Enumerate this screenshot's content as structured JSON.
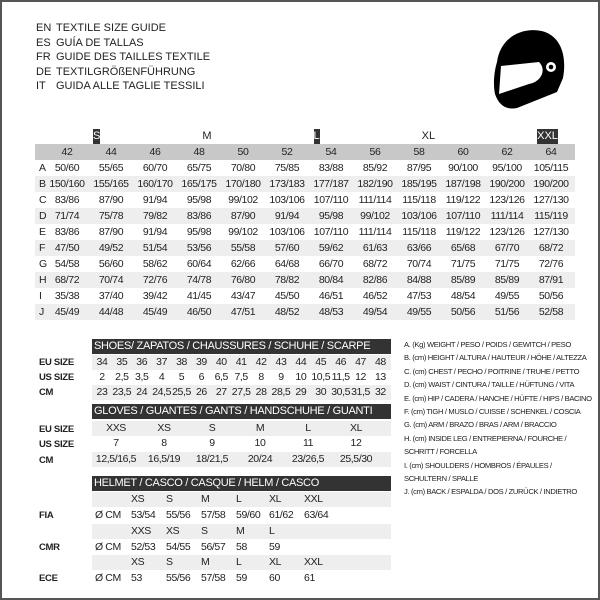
{
  "titles": [
    {
      "lang": "EN",
      "text": "TEXTILE SIZE GUIDE"
    },
    {
      "lang": "ES",
      "text": "GUÍA DE TALLAS"
    },
    {
      "lang": "FR",
      "text": "GUIDE DES TAILLES TEXTILE"
    },
    {
      "lang": "DE",
      "text": "TEXTILGRÖßENFÜHRUNG"
    },
    {
      "lang": "IT",
      "text": "GUIDA ALLE TAGLIE TESSILI"
    }
  ],
  "icon": "helmet-icon",
  "textile": {
    "size_groups": [
      {
        "label": "S",
        "style": "dark"
      },
      {
        "label": "M",
        "style": "light"
      },
      {
        "label": "L",
        "style": "dark"
      },
      {
        "label": "XL",
        "style": "light"
      },
      {
        "label": "XXL",
        "style": "dark"
      }
    ],
    "sizes": [
      "42",
      "44",
      "46",
      "48",
      "50",
      "52",
      "54",
      "56",
      "58",
      "60",
      "62",
      "64"
    ],
    "rows": [
      {
        "letter": "A",
        "values": [
          "50/60",
          "55/65",
          "60/70",
          "65/75",
          "70/80",
          "75/85",
          "83/88",
          "85/92",
          "87/95",
          "90/100",
          "95/100",
          "105/115"
        ]
      },
      {
        "letter": "B",
        "values": [
          "150/160",
          "155/165",
          "160/170",
          "165/175",
          "170/180",
          "173/183",
          "177/187",
          "182/190",
          "185/195",
          "187/198",
          "190/200",
          "190/200"
        ]
      },
      {
        "letter": "C",
        "values": [
          "83/86",
          "87/90",
          "91/94",
          "95/98",
          "99/102",
          "103/106",
          "107/110",
          "111/114",
          "115/118",
          "119/122",
          "123/126",
          "127/130"
        ]
      },
      {
        "letter": "D",
        "values": [
          "71/74",
          "75/78",
          "79/82",
          "83/86",
          "87/90",
          "91/94",
          "95/98",
          "99/102",
          "103/106",
          "107/110",
          "111/114",
          "115/119"
        ]
      },
      {
        "letter": "E",
        "values": [
          "83/86",
          "87/90",
          "91/94",
          "95/98",
          "99/102",
          "103/106",
          "107/110",
          "111/114",
          "115/118",
          "119/122",
          "123/126",
          "127/130"
        ]
      },
      {
        "letter": "F",
        "values": [
          "47/50",
          "49/52",
          "51/54",
          "53/56",
          "55/58",
          "57/60",
          "59/62",
          "61/63",
          "63/66",
          "65/68",
          "67/70",
          "68/72"
        ]
      },
      {
        "letter": "G",
        "values": [
          "54/58",
          "56/60",
          "58/62",
          "60/64",
          "62/66",
          "64/68",
          "66/70",
          "68/72",
          "70/74",
          "71/75",
          "71/75",
          "72/76"
        ]
      },
      {
        "letter": "H",
        "values": [
          "68/72",
          "70/74",
          "72/76",
          "74/78",
          "76/80",
          "78/82",
          "80/84",
          "82/86",
          "84/88",
          "85/89",
          "85/89",
          "87/91"
        ]
      },
      {
        "letter": "I",
        "values": [
          "35/38",
          "37/40",
          "39/42",
          "41/45",
          "43/47",
          "45/50",
          "46/51",
          "46/52",
          "47/53",
          "48/54",
          "49/55",
          "50/56"
        ]
      },
      {
        "letter": "J",
        "values": [
          "45/49",
          "44/48",
          "45/49",
          "46/50",
          "47/51",
          "48/52",
          "48/53",
          "49/54",
          "49/55",
          "50/56",
          "51/56",
          "52/58"
        ]
      }
    ]
  },
  "shoes": {
    "title": "SHOES/ ZAPATOS / CHAUSSURES / SCHUHE / SCARPE",
    "rows": [
      {
        "label": "EU SIZE",
        "values": [
          "34",
          "35",
          "36",
          "37",
          "38",
          "39",
          "40",
          "41",
          "42",
          "43",
          "44",
          "45",
          "46",
          "47",
          "48"
        ]
      },
      {
        "label": "US SIZE",
        "values": [
          "2",
          "2,5",
          "3,5",
          "4",
          "5",
          "6",
          "6,5",
          "7,5",
          "8",
          "9",
          "10",
          "10,5",
          "11,5",
          "12",
          "13"
        ]
      },
      {
        "label": "CM",
        "values": [
          "23",
          "23,5",
          "24",
          "24,5",
          "25,5",
          "26",
          "27",
          "27,5",
          "28",
          "28,5",
          "29",
          "30",
          "30,5",
          "31,5",
          "32"
        ]
      }
    ]
  },
  "gloves": {
    "title": "GLOVES / GUANTES / GANTS / HANDSCHUHE / GUANTI",
    "rows": [
      {
        "label": "EU SIZE",
        "values": [
          "XXS",
          "XS",
          "S",
          "M",
          "L",
          "XL"
        ]
      },
      {
        "label": "US SIZE",
        "values": [
          "7",
          "8",
          "9",
          "10",
          "11",
          "12"
        ]
      },
      {
        "label": "CM",
        "values": [
          "12,5/16,5",
          "16,5/19",
          "18/21,5",
          "20/24",
          "23/26,5",
          "25,5/30"
        ]
      }
    ]
  },
  "helmet": {
    "title": "HELMET / CASCO / CASQUE / HELM / CASCO",
    "unit": "Ø CM",
    "standards": [
      {
        "label": "FIA",
        "sizes": [
          "XS",
          "S",
          "M",
          "L",
          "XL",
          "XXL"
        ],
        "values": [
          "53/54",
          "55/56",
          "57/58",
          "59/60",
          "61/62",
          "63/64"
        ]
      },
      {
        "label": "CMR",
        "sizes": [
          "XXS",
          "XS",
          "S",
          "M",
          "L"
        ],
        "values": [
          "52/53",
          "54/55",
          "56/57",
          "58",
          "59"
        ]
      },
      {
        "label": "ECE",
        "sizes": [
          "XS",
          "S",
          "M",
          "L",
          "XL",
          "XXL"
        ],
        "values": [
          "53",
          "55/56",
          "57/58",
          "59",
          "60",
          "61"
        ]
      }
    ]
  },
  "legend": [
    "A. (Kg) WEIGHT / PESO / POIDS / GEWITCH / PESO",
    "B. (cm) HEIGHT / ALTURA / HAUTEUR / HÖHE / ALTEZZA",
    "C. (cm) CHEST / PECHO / POITRINE / TRUHE / PETTO",
    "D. (cm) WAIST / CINTURA / TAILLE / HÜFTUNG / VITA",
    "E. (cm) HIP / CADERA / HANCHE / HÜFTE / HIPS /  BACINO",
    "F.  (cm) TIGH / MUSLO / CUISSE / SCHENKEL / COSCIA",
    "G. (cm) ARM  / BRAZO / BRAS / ARM / BRACCIO",
    "H. (cm) INSIDE LEG / ENTREPIERNA / FOURCHE /",
    "SCHRITT / FORCELLA",
    "I.  (cm) SHOULDERS / HOMBROS / ÉPAULES /",
    "SCHULTERN / SPALLE",
    "J. (cm) BACK / ESPALDA / DOS / ZURÜCK / INDIETRO"
  ]
}
